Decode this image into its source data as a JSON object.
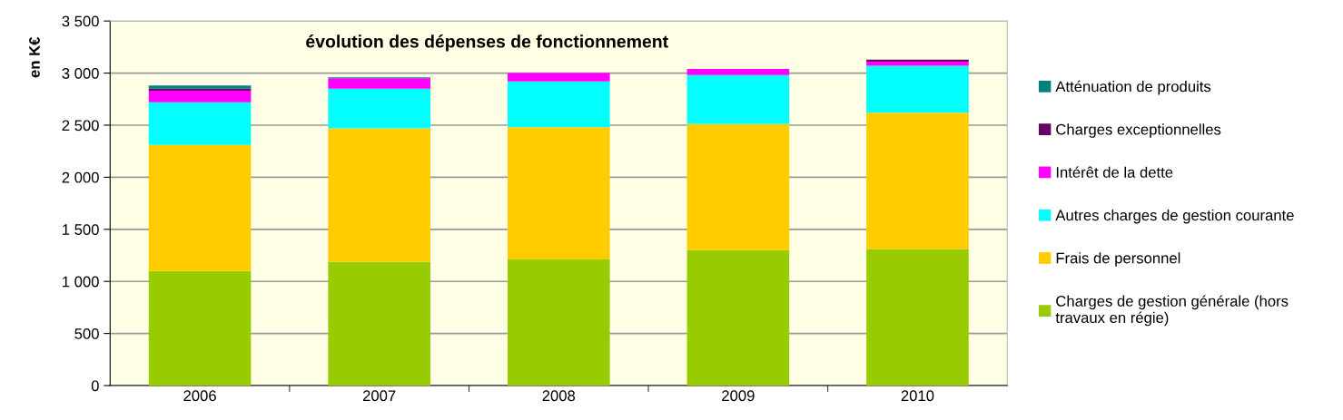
{
  "chart_data": {
    "type": "bar",
    "title": "évolution des dépenses de fonctionnement",
    "ylabel": "en K€",
    "categories": [
      "2006",
      "2007",
      "2008",
      "2009",
      "2010"
    ],
    "stacked": true,
    "series": [
      {
        "name": "Charges de gestion générale (hors travaux en régie)",
        "color": "#99cc00",
        "values": [
          1100,
          1190,
          1210,
          1300,
          1310
        ]
      },
      {
        "name": "Frais de personnel",
        "color": "#ffcc00",
        "values": [
          1210,
          1280,
          1270,
          1210,
          1310
        ]
      },
      {
        "name": "Autres charges de gestion courante",
        "color": "#00ffff",
        "values": [
          410,
          380,
          440,
          470,
          450
        ]
      },
      {
        "name": "Intérêt de la dette",
        "color": "#ff00ff",
        "values": [
          110,
          100,
          80,
          60,
          40
        ]
      },
      {
        "name": "Charges exceptionnelles",
        "color": "#660066",
        "values": [
          20,
          0,
          0,
          0,
          20
        ]
      },
      {
        "name": "Atténuation de produits",
        "color": "#008080",
        "values": [
          30,
          10,
          0,
          0,
          0
        ]
      }
    ],
    "ylim": [
      0,
      3500
    ],
    "yticks": [
      0,
      500,
      {
        "value": 1000,
        "label": "1 000"
      },
      {
        "value": 1500,
        "label": "1 500"
      },
      {
        "value": 2000,
        "label": "2 000"
      },
      {
        "value": 2500,
        "label": "2 500"
      },
      {
        "value": 3000,
        "label": "3 000"
      },
      {
        "value": 3500,
        "label": "3 500"
      }
    ],
    "grid": "y",
    "legend": "right"
  }
}
